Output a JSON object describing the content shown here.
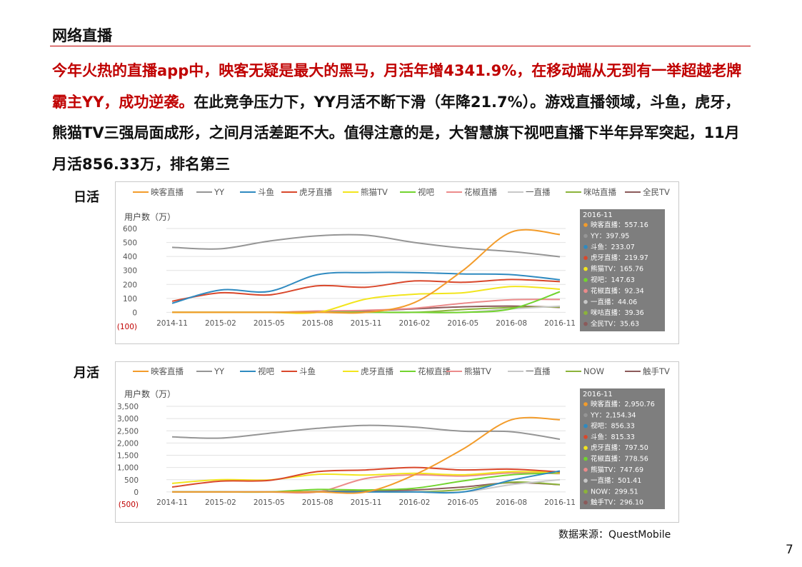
{
  "page": {
    "title": "网络直播",
    "para_red": "今年火热的直播app中，映客无疑是最大的黑马，月活年增4341.9%，在移动端从无到有一举超越老牌霸主YY，成功逆袭。",
    "para_black": "在此竞争压力下，YY月活不断下滑（年降21.7%）。游戏直播领域，斗鱼，虎牙，熊猫TV三强局面成形，之间月活差距不大。值得注意的是，大智慧旗下视吧直播下半年异军突起，11月月活856.33万，排名第三",
    "label_daily": "日活",
    "label_monthly": "月活",
    "source": "数据来源：QuestMobile",
    "page_number": "7"
  },
  "chart_data": [
    {
      "type": "line",
      "ylabel": "用户数（万）",
      "categories": [
        "2014-11",
        "2015-02",
        "2015-05",
        "2015-08",
        "2015-11",
        "2016-02",
        "2016-05",
        "2016-08",
        "2016-11"
      ],
      "ylim": [
        -100,
        600
      ],
      "yticks": [
        "600",
        "500",
        "400",
        "300",
        "200",
        "100",
        "0",
        "(100)"
      ],
      "tooltip_title": "2016-11",
      "legend_position": "top",
      "series": [
        {
          "name": "映客直播",
          "color": "#f39c2b",
          "label": "映客直播：557.16",
          "values": [
            0,
            0,
            0,
            0,
            0,
            70,
            300,
            575,
            557.16
          ]
        },
        {
          "name": "YY",
          "color": "#959595",
          "label": "YY：397.95",
          "values": [
            465,
            455,
            510,
            548,
            552,
            500,
            460,
            435,
            397.95
          ]
        },
        {
          "name": "斗鱼",
          "color": "#2f8ac0",
          "label": "斗鱼：233.07",
          "values": [
            65,
            160,
            150,
            270,
            285,
            285,
            275,
            270,
            233.07
          ]
        },
        {
          "name": "虎牙直播",
          "color": "#d9472b",
          "label": "虎牙直播：219.97",
          "values": [
            80,
            140,
            125,
            190,
            180,
            225,
            215,
            235,
            219.97
          ]
        },
        {
          "name": "熊猫TV",
          "color": "#f2e51d",
          "label": "熊猫TV：165.76",
          "values": [
            0,
            0,
            0,
            0,
            95,
            130,
            140,
            185,
            165.76
          ]
        },
        {
          "name": "视吧",
          "color": "#72d42f",
          "label": "视吧：147.63",
          "values": [
            0,
            0,
            0,
            0,
            0,
            0,
            0,
            25,
            147.63
          ]
        },
        {
          "name": "花椒直播",
          "color": "#ec8b8b",
          "label": "花椒直播：92.34",
          "values": [
            0,
            0,
            0,
            10,
            15,
            30,
            65,
            90,
            92.34
          ]
        },
        {
          "name": "一直播",
          "color": "#c8c8c8",
          "label": "一直播：44.06",
          "values": [
            0,
            0,
            0,
            0,
            0,
            0,
            0,
            25,
            44.06
          ]
        },
        {
          "name": "咪咕直播",
          "color": "#8cb33a",
          "label": "咪咕直播：39.36",
          "values": [
            0,
            0,
            0,
            0,
            0,
            0,
            20,
            35,
            39.36
          ]
        },
        {
          "name": "全民TV",
          "color": "#8b5a5a",
          "label": "全民TV：35.63",
          "values": [
            0,
            0,
            0,
            5,
            10,
            25,
            40,
            45,
            35.63
          ]
        }
      ]
    },
    {
      "type": "line",
      "ylabel": "用户数（万）",
      "categories": [
        "2014-11",
        "2015-02",
        "2015-05",
        "2015-08",
        "2015-11",
        "2016-02",
        "2016-05",
        "2016-08",
        "2016-11"
      ],
      "ylim": [
        -500,
        3500
      ],
      "yticks": [
        "3,500",
        "3,000",
        "2,500",
        "2,000",
        "1,500",
        "1,000",
        "500",
        "0",
        "(500)"
      ],
      "tooltip_title": "2016-11",
      "legend_position": "top",
      "series": [
        {
          "name": "映客直播",
          "color": "#f39c2b",
          "label": "映客直播：2,950.76",
          "values": [
            0,
            0,
            0,
            0,
            0,
            700,
            1750,
            2950,
            2950.76
          ]
        },
        {
          "name": "YY",
          "color": "#959595",
          "label": "YY：2,154.34",
          "values": [
            2250,
            2200,
            2400,
            2600,
            2720,
            2650,
            2480,
            2460,
            2154.34
          ]
        },
        {
          "name": "视吧",
          "color": "#2f8ac0",
          "label": "视吧：856.33",
          "values": [
            0,
            0,
            0,
            0,
            0,
            0,
            0,
            480,
            856.33
          ]
        },
        {
          "name": "斗鱼",
          "color": "#d9472b",
          "label": "斗鱼：815.33",
          "values": [
            200,
            440,
            470,
            830,
            900,
            1000,
            900,
            930,
            815.33
          ]
        },
        {
          "name": "虎牙直播",
          "color": "#f2e51d",
          "label": "虎牙直播：797.50",
          "values": [
            350,
            500,
            490,
            720,
            690,
            760,
            700,
            830,
            797.5
          ]
        },
        {
          "name": "花椒直播",
          "color": "#72d42f",
          "label": "花椒直播：778.56",
          "values": [
            0,
            0,
            0,
            100,
            80,
            150,
            450,
            700,
            778.56
          ]
        },
        {
          "name": "熊猫TV",
          "color": "#ec8b8b",
          "label": "熊猫TV：747.69",
          "values": [
            0,
            0,
            0,
            0,
            550,
            700,
            650,
            780,
            747.69
          ]
        },
        {
          "name": "一直播",
          "color": "#c8c8c8",
          "label": "一直播：501.41",
          "values": [
            0,
            0,
            0,
            0,
            0,
            0,
            0,
            300,
            501.41
          ]
        },
        {
          "name": "NOW",
          "color": "#8cb33a",
          "label": "NOW：299.51",
          "values": [
            0,
            0,
            0,
            0,
            0,
            0,
            100,
            400,
            299.51
          ]
        },
        {
          "name": "触手TV",
          "color": "#8b5a5a",
          "label": "触手TV：296.10",
          "values": [
            0,
            0,
            0,
            20,
            40,
            80,
            200,
            380,
            296.1
          ]
        }
      ]
    }
  ]
}
